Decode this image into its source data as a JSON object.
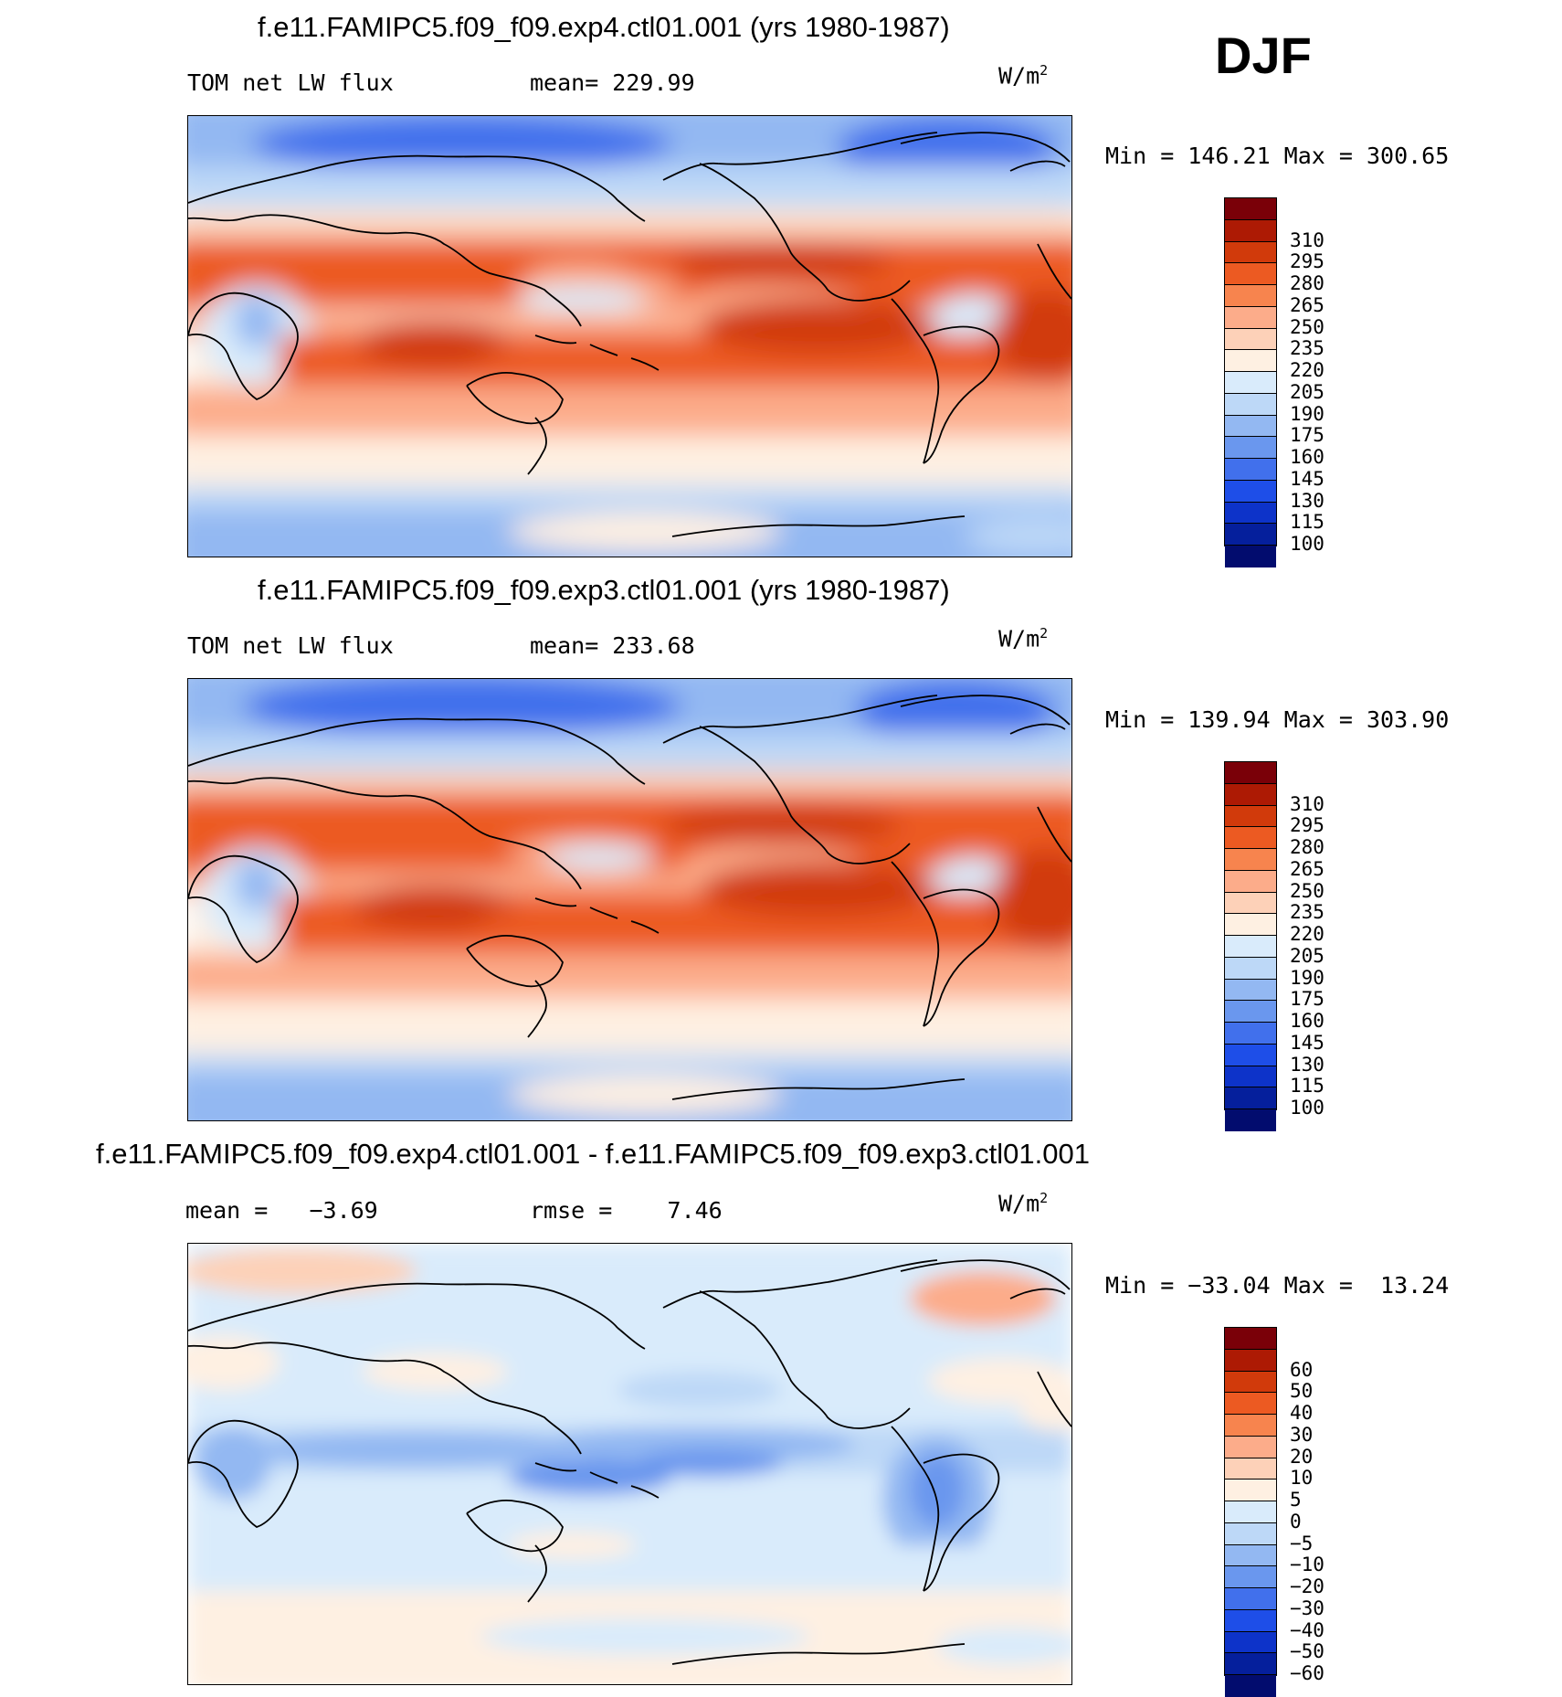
{
  "season": "DJF",
  "panels": [
    {
      "id": "exp4",
      "title": "f.e11.FAMIPC5.f09_f09.exp4.ctl01.001 (yrs 1980-1987)",
      "left_label": "TOM net LW flux",
      "center_label": "mean= 229.99",
      "units_base": "W/m",
      "units_exp": "2",
      "minmax": "Min = 146.21 Max = 300.65",
      "colorbar_colors": [
        "#7a0008",
        "#ad1a04",
        "#d13a0b",
        "#ec5a22",
        "#f7844e",
        "#fcac8a",
        "#fdd1b8",
        "#fef0e2",
        "#d9ebfb",
        "#bdd8f7",
        "#93b8f2",
        "#6a97ee",
        "#4170ec",
        "#1e4ee8",
        "#0d33c9",
        "#051f9c",
        "#020c6e"
      ],
      "colorbar_labels": [
        "310",
        "295",
        "280",
        "265",
        "250",
        "235",
        "220",
        "205",
        "190",
        "175",
        "160",
        "145",
        "130",
        "115",
        "100"
      ]
    },
    {
      "id": "exp3",
      "title": "f.e11.FAMIPC5.f09_f09.exp3.ctl01.001 (yrs 1980-1987)",
      "left_label": "TOM net LW flux",
      "center_label": "mean= 233.68",
      "units_base": "W/m",
      "units_exp": "2",
      "minmax": "Min = 139.94 Max = 303.90",
      "colorbar_colors": [
        "#7a0008",
        "#ad1a04",
        "#d13a0b",
        "#ec5a22",
        "#f7844e",
        "#fcac8a",
        "#fdd1b8",
        "#fef0e2",
        "#d9ebfb",
        "#bdd8f7",
        "#93b8f2",
        "#6a97ee",
        "#4170ec",
        "#1e4ee8",
        "#0d33c9",
        "#051f9c",
        "#020c6e"
      ],
      "colorbar_labels": [
        "310",
        "295",
        "280",
        "265",
        "250",
        "235",
        "220",
        "205",
        "190",
        "175",
        "160",
        "145",
        "130",
        "115",
        "100"
      ]
    },
    {
      "id": "diff",
      "title": "f.e11.FAMIPC5.f09_f09.exp4.ctl01.001 - f.e11.FAMIPC5.f09_f09.exp3.ctl01.001",
      "left_label": "mean =   −3.69",
      "center_label": "rmse =    7.46",
      "units_base": "W/m",
      "units_exp": "2",
      "minmax": "Min = −33.04 Max =  13.24",
      "colorbar_colors": [
        "#7a0008",
        "#ad1a04",
        "#d13a0b",
        "#ec5a22",
        "#f7844e",
        "#fcac8a",
        "#fdd1b8",
        "#fef0e2",
        "#d9ebfb",
        "#bdd8f7",
        "#93b8f2",
        "#6a97ee",
        "#4170ec",
        "#1e4ee8",
        "#0d33c9",
        "#051f9c",
        "#020c6e"
      ],
      "colorbar_labels": [
        "60",
        "50",
        "40",
        "30",
        "20",
        "10",
        "5",
        "0",
        "−5",
        "−10",
        "−20",
        "−30",
        "−40",
        "−50",
        "−60"
      ]
    }
  ]
}
